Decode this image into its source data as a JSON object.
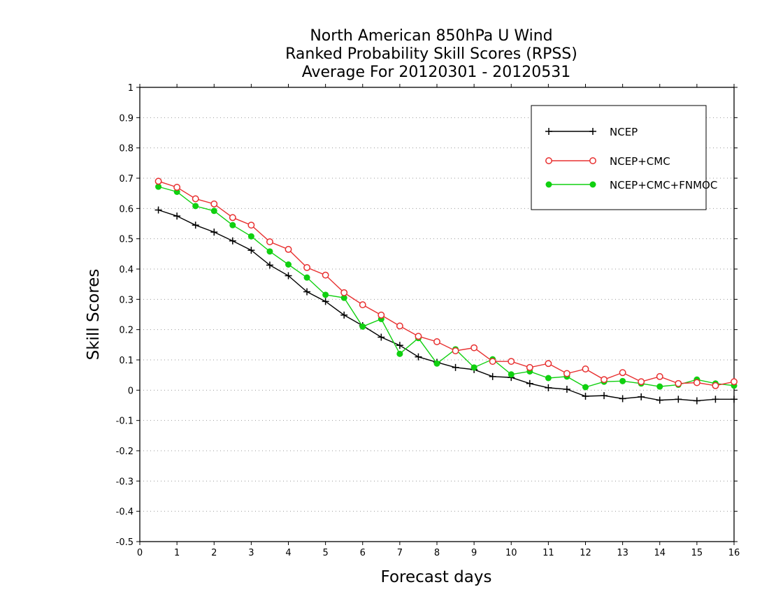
{
  "chart_data": {
    "type": "line",
    "title_lines": [
      "North American 850hPa U Wind",
      "Ranked Probability Skill Scores (RPSS)",
      "Average For 20120301 - 20120531"
    ],
    "xlabel": "Forecast days",
    "ylabel": "Skill Scores",
    "xlim": [
      0,
      16
    ],
    "ylim": [
      -0.5,
      1
    ],
    "x_ticks": [
      0,
      1,
      2,
      3,
      4,
      5,
      6,
      7,
      8,
      9,
      10,
      11,
      12,
      13,
      14,
      15,
      16
    ],
    "y_ticks": [
      -0.5,
      -0.4,
      -0.3,
      -0.2,
      -0.1,
      0,
      0.1,
      0.2,
      0.3,
      0.4,
      0.5,
      0.6,
      0.7,
      0.8,
      0.9,
      1
    ],
    "y_tick_labels": [
      "-0.5",
      "-0.4",
      "-0.3",
      "-0.2",
      "-0.1",
      "0",
      "0.1",
      "0.2",
      "0.3",
      "0.4",
      "0.5",
      "0.6",
      "0.7",
      "0.8",
      "0.9",
      "1"
    ],
    "grid": "horizontal dotted",
    "legend_position": "top-right",
    "x": [
      0.5,
      1,
      1.5,
      2,
      2.5,
      3,
      3.5,
      4,
      4.5,
      5,
      5.5,
      6,
      6.5,
      7,
      7.5,
      8,
      8.5,
      9,
      9.5,
      10,
      10.5,
      11,
      11.5,
      12,
      12.5,
      13,
      13.5,
      14,
      14.5,
      15,
      15.5,
      16
    ],
    "series": [
      {
        "name": "NCEP",
        "color": "#000000",
        "marker": "plus",
        "values": [
          0.595,
          0.575,
          0.545,
          0.522,
          0.493,
          0.462,
          0.413,
          0.378,
          0.325,
          0.293,
          0.248,
          0.213,
          0.175,
          0.148,
          0.11,
          0.092,
          0.075,
          0.068,
          0.045,
          0.042,
          0.022,
          0.008,
          0.003,
          -0.02,
          -0.018,
          -0.028,
          -0.022,
          -0.033,
          -0.03,
          -0.035,
          -0.03,
          -0.03
        ]
      },
      {
        "name": "NCEP+CMC",
        "color": "#e83030",
        "marker": "open-circle",
        "values": [
          0.69,
          0.67,
          0.632,
          0.615,
          0.57,
          0.545,
          0.49,
          0.465,
          0.405,
          0.38,
          0.322,
          0.282,
          0.248,
          0.212,
          0.178,
          0.16,
          0.13,
          0.14,
          0.095,
          0.095,
          0.075,
          0.088,
          0.055,
          0.07,
          0.035,
          0.058,
          0.028,
          0.045,
          0.022,
          0.025,
          0.015,
          0.028
        ]
      },
      {
        "name": "NCEP+CMC+FNMOC",
        "color": "#10d010",
        "marker": "filled-circle",
        "values": [
          0.672,
          0.655,
          0.608,
          0.592,
          0.545,
          0.508,
          0.458,
          0.415,
          0.372,
          0.315,
          0.305,
          0.21,
          0.235,
          0.12,
          0.172,
          0.088,
          0.135,
          0.075,
          0.102,
          0.052,
          0.062,
          0.04,
          0.045,
          0.01,
          0.028,
          0.03,
          0.022,
          0.012,
          0.018,
          0.035,
          0.022,
          0.015
        ]
      }
    ]
  }
}
